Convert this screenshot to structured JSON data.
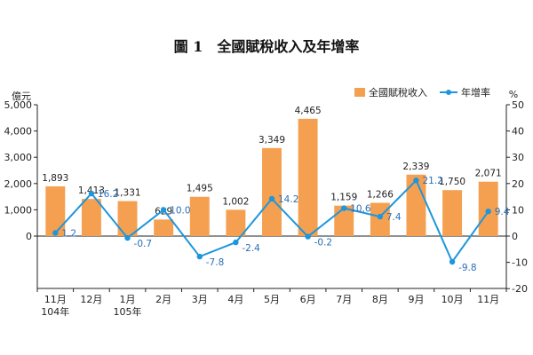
{
  "chart_data": {
    "type": "bar",
    "title": "圖 1　全國賦稅收入及年增率",
    "left_unit": "億元",
    "right_unit": "%",
    "categories": [
      [
        "11月",
        "104年"
      ],
      [
        "12月"
      ],
      [
        "1月",
        "105年"
      ],
      [
        "2月"
      ],
      [
        "3月"
      ],
      [
        "4月"
      ],
      [
        "5月"
      ],
      [
        "6月"
      ],
      [
        "7月"
      ],
      [
        "8月"
      ],
      [
        "9月"
      ],
      [
        "10月"
      ],
      [
        "11月"
      ]
    ],
    "left_ylim": [
      -2000,
      5000
    ],
    "left_ticks": [
      0,
      1000,
      2000,
      3000,
      4000,
      5000
    ],
    "right_ylim": [
      -20,
      50
    ],
    "right_ticks": [
      -20,
      -10,
      0,
      10,
      20,
      30,
      40,
      50
    ],
    "series": [
      {
        "name": "全國賦稅收入",
        "type": "bar",
        "axis": "left",
        "color": "#f5a050",
        "values": [
          1893,
          1413,
          1331,
          629,
          1495,
          1002,
          3349,
          4465,
          1159,
          1266,
          2339,
          1750,
          2071
        ],
        "labels": [
          "1,893",
          "1,413",
          "1,331",
          "629",
          "1,495",
          "1,002",
          "3,349",
          "4,465",
          "1,159",
          "1,266",
          "2,339",
          "1,750",
          "2,071"
        ]
      },
      {
        "name": "年增率",
        "type": "line",
        "axis": "right",
        "color": "#1e96dc",
        "values": [
          1.2,
          16.2,
          -0.7,
          10.0,
          -7.8,
          -2.4,
          14.2,
          -0.2,
          10.6,
          7.4,
          21.2,
          -9.8,
          9.4
        ],
        "labels": [
          "1.2",
          "16.2",
          "-0.7",
          "10.0",
          "-7.8",
          "-2.4",
          "14.2",
          "-0.2",
          "10.6",
          "7.4",
          "21.2",
          "-9.8",
          "9.4"
        ]
      }
    ],
    "legend_position": "top-right",
    "grid": false
  }
}
